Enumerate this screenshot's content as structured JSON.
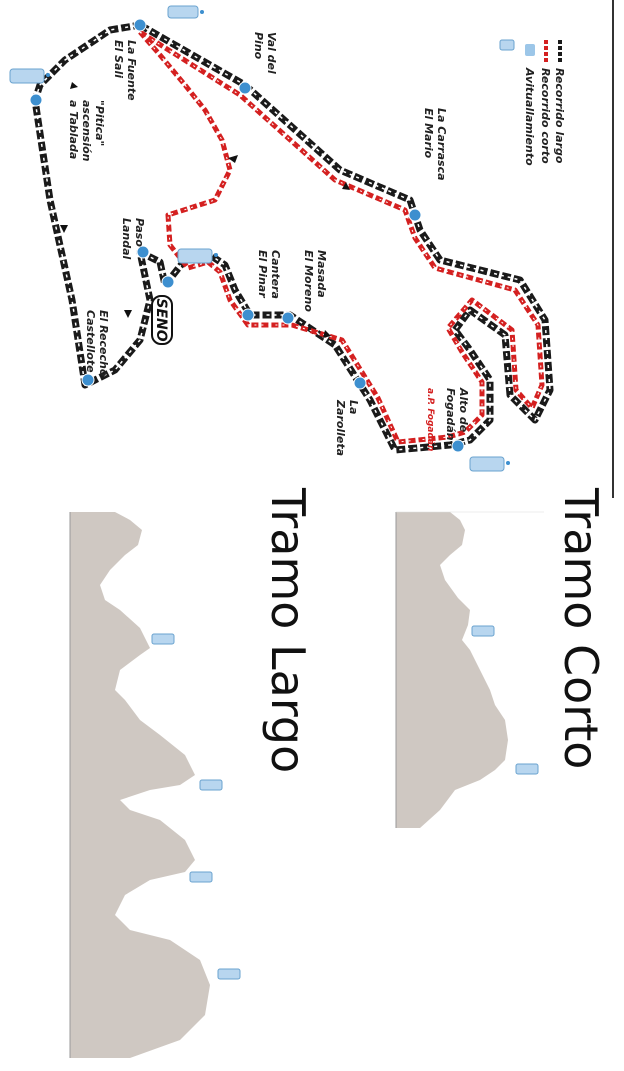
{
  "legend": {
    "long_route": "Recorrido largo",
    "short_route": "Recorrido corto",
    "aid_station": "Avituallamiento"
  },
  "places": {
    "val_del_pino": [
      "Val del",
      "Pino"
    ],
    "la_carrasca": [
      "La Carrasca",
      "El Mario"
    ],
    "la_fuente": [
      "La Fuente",
      "El Sali"
    ],
    "pitica": [
      "\"Pitica\"",
      "ascensión",
      "a Tablada"
    ],
    "paso_landal": [
      "Paso",
      "Landal"
    ],
    "masada": [
      "Masada",
      "El Moreno"
    ],
    "cantera": [
      "Cantera",
      "El Pinar"
    ],
    "la_zarolleta": [
      "La",
      "Zarolleta"
    ],
    "alto_fogadan": [
      "Alto de",
      "Fogadán"
    ],
    "alto_fogadan_note": "a.P. Fogadán",
    "el_rececho": [
      "El Rececho",
      "Castellote"
    ],
    "seno": "SENO"
  },
  "sections": {
    "short_title": "Tramo Corto",
    "long_title": "Tramo Largo"
  },
  "colors": {
    "long_route": "#1a1a1a",
    "short_route": "#d42020",
    "aid_station": "#3d8fcf",
    "profile_fill": "#cfc8c2"
  }
}
